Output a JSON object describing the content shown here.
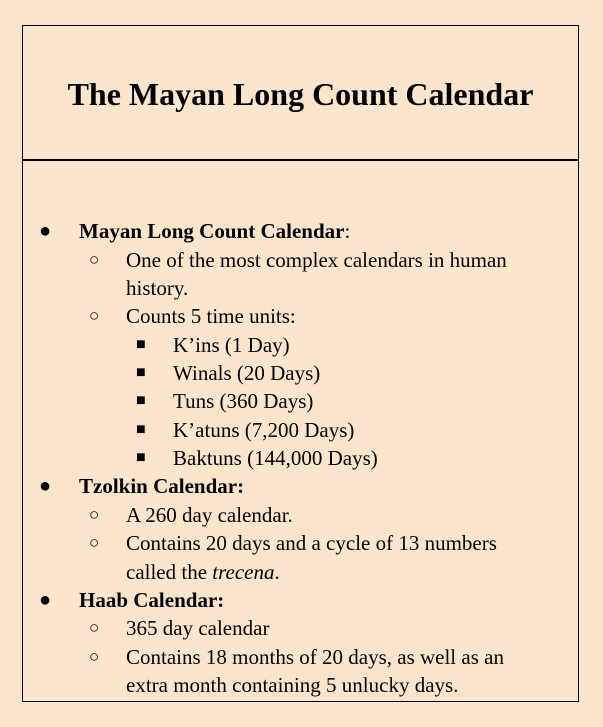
{
  "title": "The Mayan Long Count Calendar",
  "sections": [
    {
      "heading": "Mayan Long Count Calendar",
      "heading_suffix": ":",
      "items": [
        {
          "line1": "One of the most complex calendars in human",
          "line2": "history."
        },
        {
          "line1": "Counts 5 time units:",
          "subitems": [
            "K’ins (1 Day)",
            "Winals (20 Days)",
            "Tuns (360 Days)",
            "K’atuns (7,200 Days)",
            "Baktuns (144,000 Days)"
          ]
        }
      ]
    },
    {
      "heading": "Tzolkin Calendar:",
      "items": [
        {
          "line1": "A 260 day calendar."
        },
        {
          "line1": "Contains 20 days and a cycle of 13 numbers",
          "line2_prefix": "called the ",
          "line2_em": "trecena",
          "line2_suffix": "."
        }
      ]
    },
    {
      "heading": "Haab Calendar:",
      "items": [
        {
          "line1": "365 day calendar"
        },
        {
          "line1": "Contains 18 months of 20 days, as well as an",
          "line2": "extra month containing 5 unlucky days."
        }
      ]
    }
  ],
  "symbols": {
    "level1": "●",
    "level2": "○",
    "level3": "■"
  }
}
